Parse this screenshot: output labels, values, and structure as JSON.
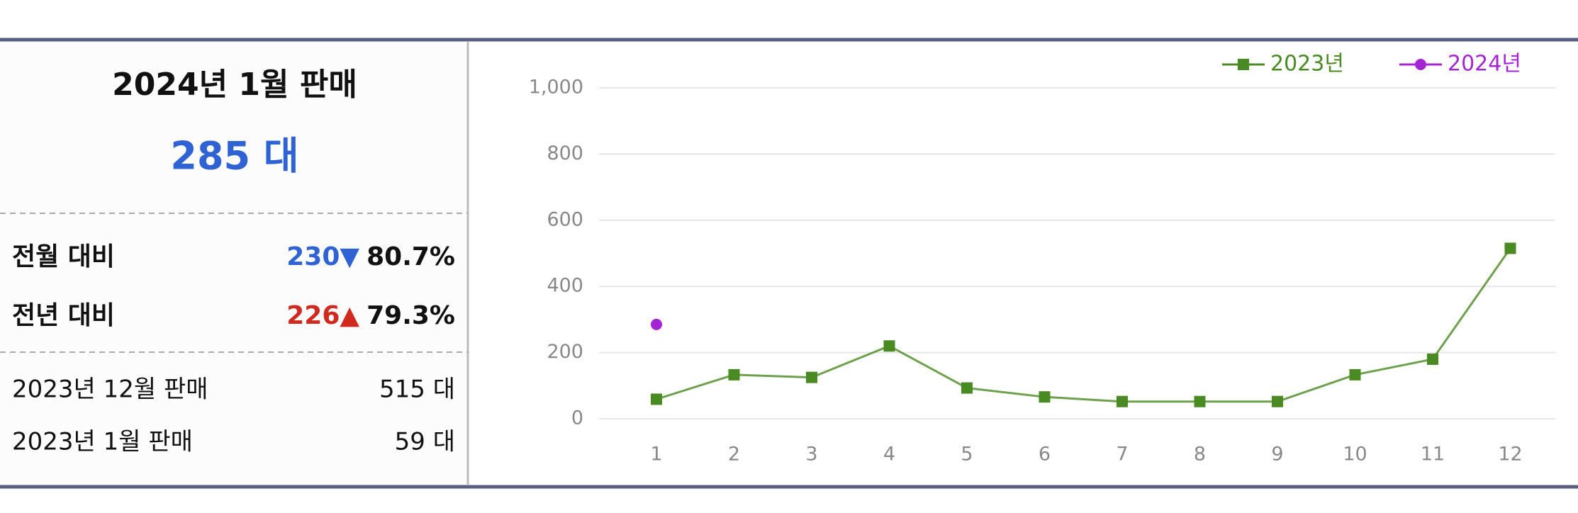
{
  "summary": {
    "title": "2024년 1월 판매",
    "total": "285 대",
    "rows": [
      {
        "label": "전월 대비",
        "diff": "230",
        "arrow": "▼",
        "rate": "80.7%"
      },
      {
        "label": "전년 대비",
        "diff": "226",
        "arrow": "▲",
        "rate": "79.3%"
      }
    ],
    "details": [
      {
        "label": "2023년 12월 판매",
        "value": "515 대"
      },
      {
        "label": "2023년 1월 판매",
        "value": "59 대"
      }
    ]
  },
  "chart_data": {
    "type": "line",
    "categories": [
      "1",
      "2",
      "3",
      "4",
      "5",
      "6",
      "7",
      "8",
      "9",
      "10",
      "11",
      "12"
    ],
    "series": [
      {
        "name": "2023년",
        "color": "#4a8a22",
        "values": [
          59,
          133,
          125,
          220,
          93,
          66,
          52,
          52,
          52,
          133,
          180,
          515
        ]
      },
      {
        "name": "2024년",
        "color": "#a524d4",
        "values": [
          285,
          null,
          null,
          null,
          null,
          null,
          null,
          null,
          null,
          null,
          null,
          null
        ]
      }
    ],
    "ylim": [
      0,
      1000
    ],
    "yticks": [
      0,
      200,
      400,
      600,
      800,
      {
        "value": 1000,
        "label": "1,000"
      }
    ],
    "grid": true,
    "legend": "top-right"
  }
}
